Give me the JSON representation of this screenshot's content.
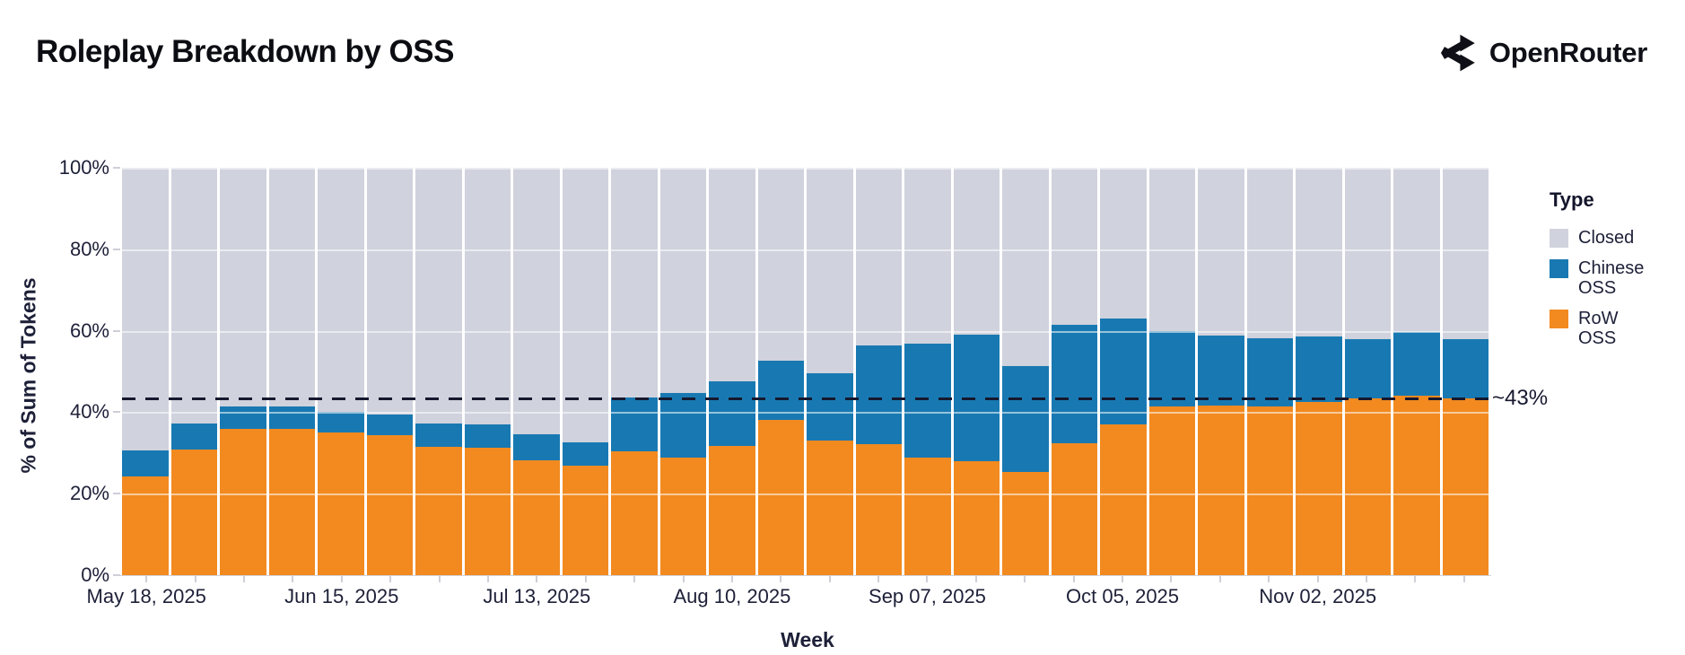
{
  "header": {
    "title": "Roleplay Breakdown by OSS",
    "brand": "OpenRouter"
  },
  "chart_data": {
    "type": "bar",
    "stacked": true,
    "normalized_percent": true,
    "title": "Roleplay Breakdown by OSS",
    "xlabel": "Week",
    "ylabel": "% of Sum of Tokens",
    "ylim": [
      0,
      100
    ],
    "categories": [
      "May 18, 2025",
      "May 25, 2025",
      "Jun 01, 2025",
      "Jun 08, 2025",
      "Jun 15, 2025",
      "Jun 22, 2025",
      "Jun 29, 2025",
      "Jul 06, 2025",
      "Jul 13, 2025",
      "Jul 20, 2025",
      "Jul 27, 2025",
      "Aug 03, 2025",
      "Aug 10, 2025",
      "Aug 17, 2025",
      "Aug 24, 2025",
      "Aug 31, 2025",
      "Sep 07, 2025",
      "Sep 14, 2025",
      "Sep 21, 2025",
      "Sep 28, 2025",
      "Oct 05, 2025",
      "Oct 12, 2025",
      "Oct 19, 2025",
      "Oct 26, 2025",
      "Nov 02, 2025",
      "Nov 09, 2025",
      "Nov 16, 2025",
      "Nov 23, 2025"
    ],
    "series": [
      {
        "name": "Closed",
        "color": "#d0d2dd",
        "values": [
          69.4,
          62.8,
          58.6,
          58.6,
          59.9,
          60.6,
          62.8,
          63.0,
          65.4,
          67.4,
          56.4,
          55.3,
          52.4,
          47.4,
          50.4,
          43.6,
          43.2,
          41.0,
          48.7,
          38.5,
          37.0,
          40.1,
          41.2,
          41.9,
          41.4,
          42.1,
          40.3,
          42.1
        ]
      },
      {
        "name": "Chinese OSS",
        "color": "#1879b2",
        "values": [
          6.4,
          6.4,
          5.5,
          5.5,
          5.1,
          5.0,
          5.7,
          5.7,
          6.4,
          5.7,
          13.2,
          15.8,
          15.9,
          14.5,
          16.6,
          24.2,
          27.9,
          31.0,
          25.9,
          29.1,
          26.0,
          18.5,
          17.2,
          16.7,
          16.1,
          14.6,
          15.7,
          14.6
        ]
      },
      {
        "name": "RoW OSS",
        "color": "#f28a20",
        "values": [
          24.2,
          30.8,
          35.9,
          35.9,
          35.0,
          34.4,
          31.5,
          31.3,
          28.2,
          26.9,
          30.4,
          28.9,
          31.7,
          38.1,
          33.0,
          32.2,
          28.9,
          28.0,
          25.4,
          32.4,
          37.0,
          41.4,
          41.6,
          41.4,
          42.5,
          43.3,
          44.0,
          43.3
        ]
      }
    ],
    "x_axis": {
      "label": "Week",
      "tick_labels": [
        {
          "index": 0,
          "label": "May 18, 2025"
        },
        {
          "index": 4,
          "label": "Jun 15, 2025"
        },
        {
          "index": 8,
          "label": "Jul 13, 2025"
        },
        {
          "index": 12,
          "label": "Aug 10, 2025"
        },
        {
          "index": 16,
          "label": "Sep 07, 2025"
        },
        {
          "index": 20,
          "label": "Oct 05, 2025"
        },
        {
          "index": 24,
          "label": "Nov 02, 2025"
        }
      ]
    },
    "y_axis": {
      "label": "% of Sum of Tokens",
      "ticks": [
        {
          "value": 0,
          "label": "0%"
        },
        {
          "value": 20,
          "label": "20%"
        },
        {
          "value": 40,
          "label": "40%"
        },
        {
          "value": 60,
          "label": "60%"
        },
        {
          "value": 80,
          "label": "80%"
        },
        {
          "value": 100,
          "label": "100%"
        }
      ],
      "gridlines": [
        20,
        40,
        60,
        80,
        100
      ]
    },
    "reference_line": {
      "value": 43.3,
      "label": "~43%",
      "style": "dashed",
      "color": "#16182e"
    },
    "legend": {
      "title": "Type",
      "position": "right",
      "entries": [
        "Closed",
        "Chinese OSS",
        "RoW OSS"
      ]
    }
  }
}
